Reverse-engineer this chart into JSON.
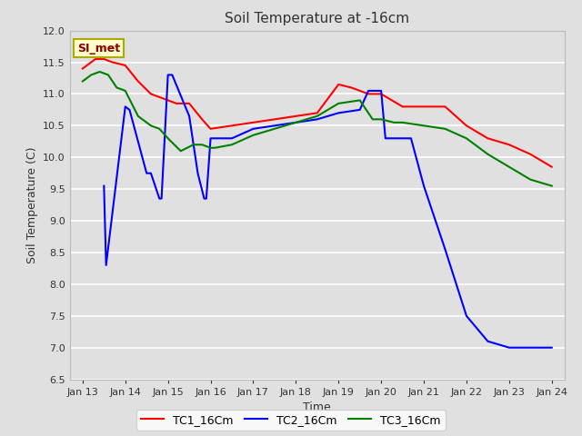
{
  "title": "Soil Temperature at -16cm",
  "xlabel": "Time",
  "ylabel": "Soil Temperature (C)",
  "ylim": [
    6.5,
    12.0
  ],
  "background_color": "#e0e0e0",
  "plot_bg_color": "#e0e0e0",
  "annotation_text": "SI_met",
  "annotation_bg": "#ffffcc",
  "annotation_border": "#aaaa00",
  "series": {
    "TC1_16Cm": {
      "color": "red",
      "x": [
        13.0,
        13.3,
        13.5,
        13.7,
        14.0,
        14.3,
        14.6,
        14.8,
        15.0,
        15.2,
        15.5,
        15.8,
        16.0,
        16.5,
        17.0,
        17.5,
        18.0,
        18.5,
        19.0,
        19.3,
        19.7,
        20.0,
        20.5,
        21.0,
        21.5,
        22.0,
        22.5,
        23.0,
        23.5,
        24.0
      ],
      "y": [
        11.4,
        11.55,
        11.55,
        11.5,
        11.45,
        11.2,
        11.0,
        10.95,
        10.9,
        10.85,
        10.85,
        10.6,
        10.45,
        10.5,
        10.55,
        10.6,
        10.65,
        10.7,
        11.15,
        11.1,
        11.0,
        11.0,
        10.8,
        10.8,
        10.8,
        10.5,
        10.3,
        10.2,
        10.05,
        9.85
      ]
    },
    "TC2_16Cm": {
      "color": "blue",
      "x": [
        13.5,
        13.55,
        14.0,
        14.1,
        14.5,
        14.6,
        14.8,
        14.85,
        15.0,
        15.1,
        15.5,
        15.7,
        15.85,
        15.9,
        16.0,
        16.5,
        17.0,
        17.5,
        18.0,
        18.5,
        19.0,
        19.5,
        19.7,
        20.0,
        20.1,
        20.7,
        21.0,
        21.5,
        22.0,
        22.5,
        23.0,
        23.5,
        24.0
      ],
      "y": [
        9.55,
        8.3,
        10.8,
        10.75,
        9.75,
        9.75,
        9.35,
        9.35,
        11.3,
        11.3,
        10.65,
        9.75,
        9.35,
        9.35,
        10.3,
        10.3,
        10.45,
        10.5,
        10.55,
        10.6,
        10.7,
        10.75,
        11.05,
        11.05,
        10.3,
        10.3,
        9.55,
        8.55,
        7.5,
        7.1,
        7.0,
        7.0,
        7.0
      ]
    },
    "TC3_16Cm": {
      "color": "green",
      "x": [
        13.0,
        13.2,
        13.4,
        13.6,
        13.8,
        14.0,
        14.3,
        14.6,
        14.8,
        15.0,
        15.3,
        15.6,
        15.8,
        16.0,
        16.1,
        16.5,
        17.0,
        17.5,
        18.0,
        18.5,
        19.0,
        19.5,
        19.8,
        20.0,
        20.3,
        20.5,
        21.0,
        21.5,
        22.0,
        22.5,
        23.0,
        23.5,
        24.0
      ],
      "y": [
        11.2,
        11.3,
        11.35,
        11.3,
        11.1,
        11.05,
        10.65,
        10.5,
        10.45,
        10.3,
        10.1,
        10.2,
        10.2,
        10.15,
        10.15,
        10.2,
        10.35,
        10.45,
        10.55,
        10.65,
        10.85,
        10.9,
        10.6,
        10.6,
        10.55,
        10.55,
        10.5,
        10.45,
        10.3,
        10.05,
        9.85,
        9.65,
        9.55
      ]
    }
  },
  "legend": {
    "TC1_16Cm": "TC1_16Cm",
    "TC2_16Cm": "TC2_16Cm",
    "TC3_16Cm": "TC3_16Cm"
  },
  "yticks": [
    6.5,
    7.0,
    7.5,
    8.0,
    8.5,
    9.0,
    9.5,
    10.0,
    10.5,
    11.0,
    11.5,
    12.0
  ],
  "xtick_labels": [
    "Jan 13",
    "Jan 14",
    "Jan 15",
    "Jan 16",
    "Jan 17",
    "Jan 18",
    "Jan 19",
    "Jan 20",
    "Jan 21",
    "Jan 22",
    "Jan 23",
    "Jan 24"
  ],
  "xtick_positions": [
    13,
    14,
    15,
    16,
    17,
    18,
    19,
    20,
    21,
    22,
    23,
    24
  ],
  "xlim": [
    12.7,
    24.3
  ]
}
